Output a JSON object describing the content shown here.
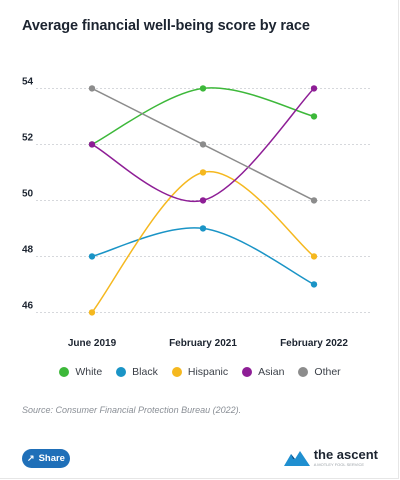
{
  "title": "Average financial well-being score by race",
  "chart_data": {
    "type": "line",
    "title": "Average financial well-being score by race",
    "categories": [
      "June 2019",
      "February 2021",
      "February 2022"
    ],
    "ylim": [
      45.8,
      54.3
    ],
    "yticks": [
      46,
      48,
      50,
      52,
      54
    ],
    "grid": true,
    "legend_position": "bottom",
    "series": [
      {
        "name": "White",
        "color": "#3db83a",
        "values": [
          52,
          54,
          53
        ]
      },
      {
        "name": "Black",
        "color": "#1a94c6",
        "values": [
          48,
          49,
          47
        ]
      },
      {
        "name": "Hispanic",
        "color": "#f5b81f",
        "values": [
          46,
          51,
          48
        ]
      },
      {
        "name": "Asian",
        "color": "#8e1e96",
        "values": [
          52,
          50,
          54
        ]
      },
      {
        "name": "Other",
        "color": "#8c8c8c",
        "values": [
          54,
          52,
          50
        ]
      }
    ]
  },
  "source": "Source: Consumer Financial Protection Bureau (2022).",
  "share_label": "Share",
  "brand": {
    "name": "the ascent",
    "sub": "A MOTLEY FOOL SERVICE"
  }
}
